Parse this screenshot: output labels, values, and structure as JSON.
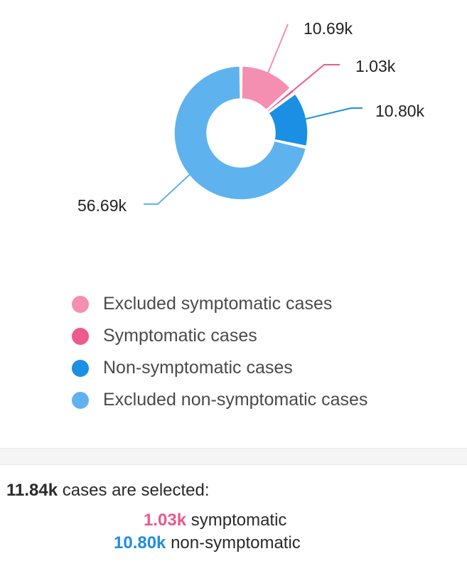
{
  "chart_data": {
    "type": "pie",
    "categories": [
      "Excluded symptomatic cases",
      "Symptomatic cases",
      "Non-symptomatic cases",
      "Excluded non-symptomatic cases"
    ],
    "values": [
      10690,
      1030,
      10800,
      56690
    ],
    "labels": [
      "10.69k",
      "1.03k",
      "10.80k",
      "56.69k"
    ],
    "colors": [
      "#f48fb1",
      "#ec5a8e",
      "#1b8fe4",
      "#5eb3ee"
    ],
    "donut": true,
    "legend_position": "bottom"
  },
  "legend": {
    "items": [
      {
        "label": "Excluded symptomatic cases",
        "color": "#f48fb1"
      },
      {
        "label": "Symptomatic cases",
        "color": "#ec5a8e"
      },
      {
        "label": "Non-symptomatic cases",
        "color": "#1b8fe4"
      },
      {
        "label": "Excluded non-symptomatic cases",
        "color": "#5eb3ee"
      }
    ]
  },
  "summary": {
    "total_value": "11.84k",
    "total_text": "cases are selected:",
    "symptomatic_value": "1.03k",
    "symptomatic_text": "symptomatic",
    "non_symptomatic_value": "10.80k",
    "non_symptomatic_text": "non-symptomatic"
  }
}
